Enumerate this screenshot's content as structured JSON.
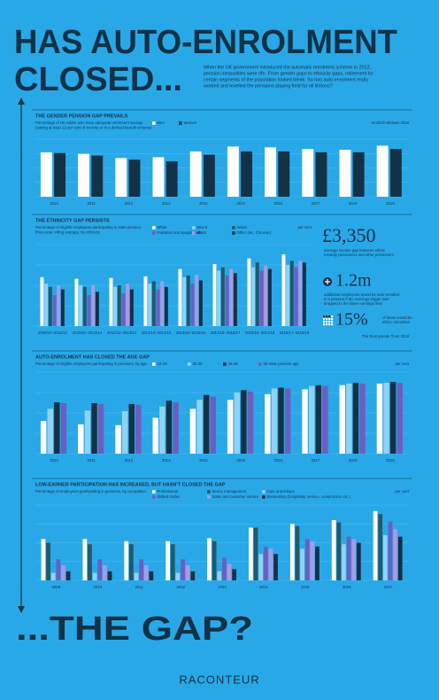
{
  "title_lines": [
    "HAS AUTO-ENROLMENT",
    "CLOSED..."
  ],
  "intro": [
    "When the UK government introduced the automatic enrolment scheme in 2012,",
    "pension inequalities were rife. From gender gaps to ethnicity gaps, retirement for",
    "certain segments of the population looked bleak. So has auto-enrolment really",
    "worked and levelled the pensions playing field for all Britons?"
  ],
  "chart_data": [
    {
      "type": "bar",
      "title": "THE GENDER PENSION GAP PREVAILS",
      "subtitle": [
        "Percentage of UK adults who have adequate retirement savings",
        "(saving at least 12 per cent of income or in a defined benefit scheme)"
      ],
      "source": "Scottish Widows 2019",
      "categories": [
        "2010",
        "2011",
        "2012",
        "2013",
        "2014",
        "2015",
        "2016",
        "2017",
        "2018",
        "2019"
      ],
      "series": [
        {
          "name": "Men",
          "color": "#ffffff",
          "values": [
            54,
            52,
            47,
            48,
            55,
            61,
            60,
            58,
            57,
            62
          ]
        },
        {
          "name": "Women",
          "color": "#123247",
          "values": [
            53,
            50,
            45,
            43,
            51,
            55,
            55,
            54,
            54,
            58
          ]
        }
      ],
      "ylim": [
        0,
        70
      ],
      "legend_columns": 2
    },
    {
      "type": "bar",
      "title": "THE ETHNICITY GAP PERSISTS",
      "subtitle": [
        "Percentage of eligible employees participating in state pension,",
        "three-year rolling average, by ethnicity"
      ],
      "y_label": "per cent",
      "categories": [
        "2009/10–2011/12",
        "2010/11–2012/13",
        "2011/12–2013/14",
        "2012/13–2014/15",
        "2013/14–2015/16",
        "2014/15–2016/17",
        "2015/16–2017/18",
        "2016/17–2018/19"
      ],
      "series": [
        {
          "name": "White",
          "color": "#ffffff",
          "values": [
            60,
            58,
            59,
            61,
            70,
            76,
            83,
            88
          ]
        },
        {
          "name": "Mixed",
          "color": "#8fd3f4",
          "values": [
            52,
            50,
            48,
            52,
            60,
            68,
            72,
            75
          ]
        },
        {
          "name": "Indian",
          "color": "#1f5a6e",
          "values": [
            48,
            48,
            50,
            55,
            62,
            72,
            78,
            80
          ]
        },
        {
          "name": "Pakistani and Bangladeshi",
          "color": "#6a5fc1",
          "values": [
            38,
            38,
            40,
            45,
            52,
            62,
            68,
            72
          ]
        },
        {
          "name": "Black",
          "color": "#a89ae6",
          "values": [
            50,
            50,
            52,
            55,
            63,
            70,
            74,
            80
          ]
        },
        {
          "name": "Other (inc. Chinese)",
          "color": "#123247",
          "values": [
            45,
            42,
            45,
            48,
            56,
            65,
            70,
            78
          ]
        }
      ],
      "ylim": [
        0,
        100
      ],
      "legend_columns": 3
    },
    {
      "type": "bar",
      "title": "AUTO-ENROLMENT HAS CLOSED THE AGE GAP",
      "subtitle": [
        "Percentage of eligible employees participating in pensions, by age"
      ],
      "y_label": "per cent",
      "categories": [
        "2010",
        "2011",
        "2012",
        "2013",
        "2014",
        "2015",
        "2016",
        "2017",
        "2018",
        "2019"
      ],
      "series": [
        {
          "name": "22-29",
          "color": "#ffffff",
          "values": [
            40,
            36,
            35,
            44,
            55,
            66,
            73,
            79,
            84,
            86
          ]
        },
        {
          "name": "30-39",
          "color": "#8fd3f4",
          "values": [
            55,
            53,
            52,
            58,
            66,
            75,
            80,
            83,
            86,
            87
          ]
        },
        {
          "name": "40-49",
          "color": "#123247",
          "values": [
            63,
            62,
            61,
            65,
            72,
            78,
            81,
            84,
            87,
            88
          ]
        },
        {
          "name": "50-state pension age",
          "color": "#6a5fc1",
          "values": [
            62,
            61,
            60,
            63,
            70,
            76,
            80,
            83,
            86,
            87
          ]
        }
      ],
      "ylim": [
        0,
        100
      ],
      "legend_columns": 4
    },
    {
      "type": "bar",
      "title": "LOW-EARNER PARTICIPATION HAS INCREASED, BUT HASN'T CLOSED THE GAP",
      "subtitle": [
        "Percentage of employees participating in pensions, by occupation"
      ],
      "y_label": "per cent",
      "categories": [
        "2009",
        "2010",
        "2011",
        "2012",
        "2013",
        "2014",
        "2015",
        "2016",
        "2017"
      ],
      "series": [
        {
          "name": "Professional",
          "color": "#ffffff",
          "values": [
            55,
            55,
            52,
            52,
            56,
            70,
            75,
            80,
            92
          ]
        },
        {
          "name": "Senior management",
          "color": "#1f5a6e",
          "values": [
            50,
            48,
            48,
            48,
            52,
            70,
            72,
            77,
            88
          ]
        },
        {
          "name": "Care and leisure",
          "color": "#8fd3f4",
          "values": [
            10,
            10,
            10,
            10,
            12,
            35,
            42,
            48,
            60
          ]
        },
        {
          "name": "Skilled trades",
          "color": "#6a5fc1",
          "values": [
            28,
            28,
            28,
            28,
            30,
            45,
            55,
            58,
            78
          ]
        },
        {
          "name": "Sales and customer service",
          "color": "#a89ae6",
          "values": [
            20,
            20,
            20,
            20,
            22,
            42,
            52,
            55,
            68
          ]
        },
        {
          "name": "Elementary (hospitality, service, construction etc.)",
          "color": "#123247",
          "values": [
            12,
            12,
            12,
            12,
            15,
            35,
            45,
            50,
            58
          ]
        }
      ],
      "ylim": [
        0,
        100
      ],
      "legend_columns": 3
    }
  ],
  "stats": [
    {
      "value": "£3,350",
      "text": [
        "average income gap between ethnic",
        "minority pensioners and other pensioners"
      ]
    },
    {
      "value": "1.2m",
      "text": [
        "additional employees would be auto-enrolled",
        "in a pension if the earnings trigger was",
        "dropped to the lower earnings limit"
      ]
    },
    {
      "value": "15%",
      "text": [
        "of these would be",
        "ethnic minorities"
      ]
    }
  ],
  "stats_source": "The Runnymede Trust 2019",
  "footer_title": "...THE GAP?",
  "brand": "RACONTEUR"
}
